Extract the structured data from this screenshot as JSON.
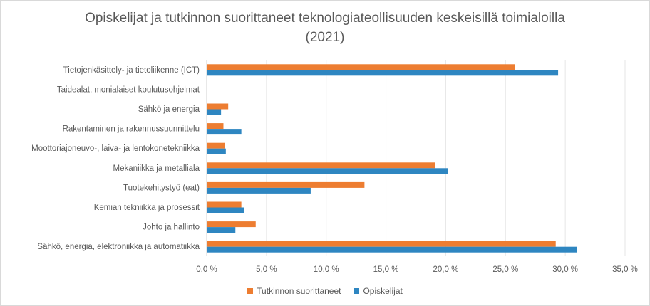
{
  "chart_data": {
    "type": "bar",
    "orientation": "horizontal",
    "title_lines": [
      "Opiskelijat ja tutkinnon suorittaneet teknologiateollisuuden keskeisillä toimialoilla",
      "(2021)"
    ],
    "categories": [
      "Tietojenkäsittely- ja tietoliikenne (ICT)",
      "Taidealat, monialaiset koulutusohjelmat",
      "Sähkö ja energia",
      "Rakentaminen ja rakennussuunnittelu",
      "Moottoriajoneuvo-, laiva- ja lentokonetekniikka",
      "Mekaniikka ja metalliala",
      "Tuotekehitystyö (eat)",
      "Kemian tekniikka ja prosessit",
      "Johto ja hallinto",
      "Sähkö, energia, elektroniikka ja automatiikka"
    ],
    "series": [
      {
        "name": "Tutkinnon suorittaneet",
        "color": "#ED7D31",
        "values": [
          25.8,
          0.0,
          1.8,
          1.4,
          1.5,
          19.1,
          13.2,
          2.9,
          4.1,
          29.2
        ]
      },
      {
        "name": "Opiskelijat",
        "color": "#2E86C1",
        "values": [
          29.4,
          0.0,
          1.2,
          2.9,
          1.6,
          20.2,
          8.7,
          3.1,
          2.4,
          31.0
        ]
      }
    ],
    "xlim": [
      0,
      35
    ],
    "x_ticks": [
      "0,0 %",
      "5,0 %",
      "10,0 %",
      "15,0 %",
      "20,0 %",
      "25,0 %",
      "30,0 %",
      "35,0 %"
    ],
    "gridlines": true,
    "legend_position": "bottom"
  }
}
